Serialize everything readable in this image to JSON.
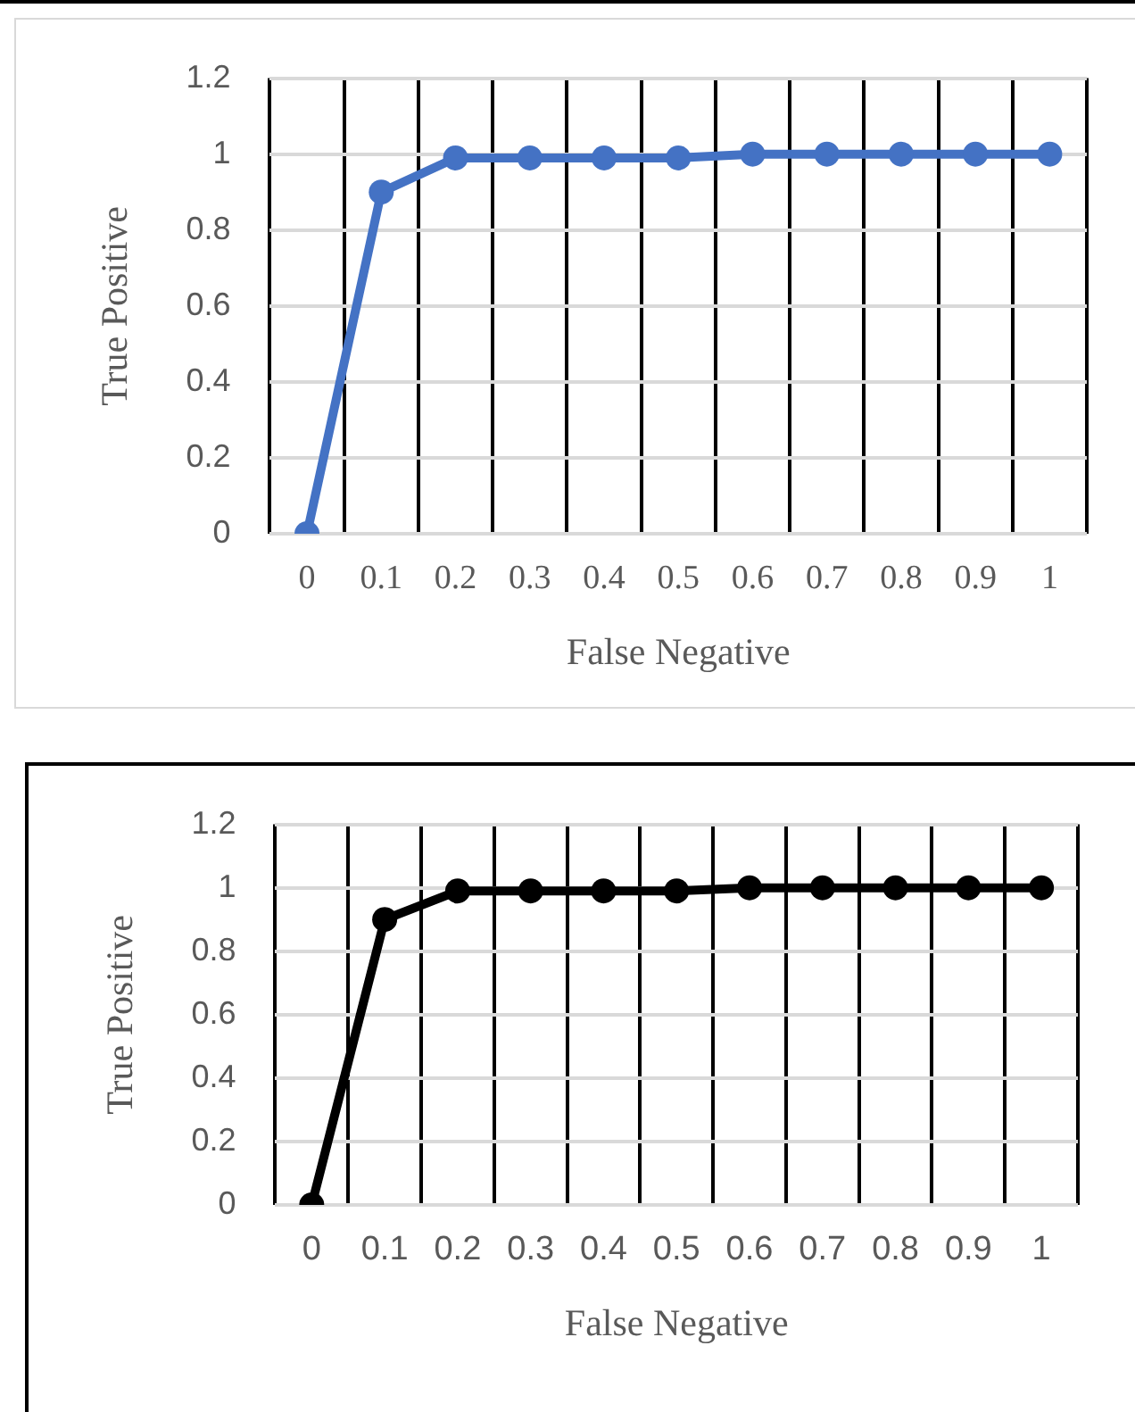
{
  "chart_data": [
    {
      "type": "line",
      "xlabel": "False Negative",
      "ylabel": "True Positive",
      "categories": [
        "0",
        "0.1",
        "0.2",
        "0.3",
        "0.4",
        "0.5",
        "0.6",
        "0.7",
        "0.8",
        "0.9",
        "1"
      ],
      "series": [
        {
          "color": "#4472c4",
          "values": [
            0,
            0.9,
            0.99,
            0.99,
            0.99,
            0.99,
            1,
            1,
            1,
            1,
            1
          ]
        }
      ],
      "ylim": [
        0,
        1.2
      ],
      "yticks": [
        0,
        0.2,
        0.4,
        0.6,
        0.8,
        1,
        1.2
      ],
      "grid": true,
      "marker": "circle",
      "line_style": "solid"
    },
    {
      "type": "line",
      "xlabel": "False Negative",
      "ylabel": "True Positive",
      "categories": [
        "0",
        "0.1",
        "0.2",
        "0.3",
        "0.4",
        "0.5",
        "0.6",
        "0.7",
        "0.8",
        "0.9",
        "1"
      ],
      "series": [
        {
          "color": "#000000",
          "values": [
            0,
            0.9,
            0.99,
            0.99,
            0.99,
            0.99,
            1,
            1,
            1,
            1,
            1
          ]
        }
      ],
      "ylim": [
        0,
        1.2
      ],
      "yticks": [
        0,
        0.2,
        0.4,
        0.6,
        0.8,
        1,
        1.2
      ],
      "grid": true,
      "marker": "circle",
      "line_style": "solid"
    }
  ]
}
